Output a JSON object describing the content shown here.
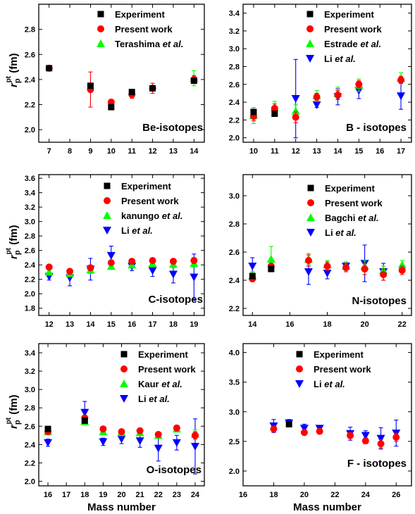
{
  "colors": {
    "experiment": "#000000",
    "present": "#ff0000",
    "ref": "#00ff00",
    "li": "#0000ff"
  },
  "chart_data": [
    {
      "type": "scatter",
      "panel": "Be",
      "label": "Be-isotopes",
      "xlim": [
        6.5,
        14.5
      ],
      "ylim": [
        1.9,
        3.0
      ],
      "xticks": [
        7,
        8,
        9,
        10,
        11,
        12,
        13,
        14
      ],
      "yticks": [
        2.0,
        2.2,
        2.4,
        2.6,
        2.8
      ],
      "ylabel_main": "r",
      "ylabel_sub": "p",
      "ylabel_sup": "pt",
      "ylabel_unit": " (fm)",
      "xlabel": "",
      "series": [
        {
          "name": "Experiment",
          "marker": "square",
          "color": "#000000",
          "points": [
            {
              "x": 7,
              "y": 2.49,
              "e": 0.01
            },
            {
              "x": 9,
              "y": 2.35,
              "e": 0.02
            },
            {
              "x": 10,
              "y": 2.18,
              "e": 0.01
            },
            {
              "x": 11,
              "y": 2.3,
              "e": 0.02
            },
            {
              "x": 12,
              "y": 2.33,
              "e": 0.02
            },
            {
              "x": 14,
              "y": 2.39,
              "e": 0.02
            }
          ]
        },
        {
          "name": "Present work",
          "marker": "circle",
          "color": "#ff0000",
          "points": [
            {
              "x": 7,
              "y": 2.49,
              "e": 0.01
            },
            {
              "x": 9,
              "y": 2.32,
              "e": 0.14
            },
            {
              "x": 10,
              "y": 2.22,
              "e": 0.02
            },
            {
              "x": 11,
              "y": 2.28,
              "e": 0.03
            },
            {
              "x": 12,
              "y": 2.33,
              "e": 0.04
            },
            {
              "x": 14,
              "y": 2.4,
              "e": 0.03
            }
          ]
        },
        {
          "name_main": "Terashima ",
          "name_em": "et al.",
          "marker": "triangle-up",
          "color": "#00ff00",
          "points": [
            {
              "x": 14,
              "y": 2.41,
              "e": 0.06
            }
          ]
        }
      ]
    },
    {
      "type": "scatter",
      "panel": "B",
      "label": "B - isotopes",
      "xlim": [
        9.5,
        17.5
      ],
      "ylim": [
        1.95,
        3.5
      ],
      "xticks": [
        10,
        11,
        12,
        13,
        14,
        15,
        16,
        17
      ],
      "yticks": [
        2.0,
        2.2,
        2.4,
        2.6,
        2.8,
        3.0,
        3.2,
        3.4
      ],
      "xlabel": "",
      "series": [
        {
          "name": "Experiment",
          "marker": "square",
          "color": "#000000",
          "points": [
            {
              "x": 10,
              "y": 2.29,
              "e": 0.02
            },
            {
              "x": 11,
              "y": 2.27,
              "e": 0.02
            }
          ]
        },
        {
          "name": "Present work",
          "marker": "circle",
          "color": "#ff0000",
          "points": [
            {
              "x": 10,
              "y": 2.24,
              "e": 0.05
            },
            {
              "x": 11,
              "y": 2.33,
              "e": 0.05
            },
            {
              "x": 12,
              "y": 2.23,
              "e": 0.06
            },
            {
              "x": 13,
              "y": 2.46,
              "e": 0.04
            },
            {
              "x": 14,
              "y": 2.48,
              "e": 0.05
            },
            {
              "x": 15,
              "y": 2.6,
              "e": 0.04
            },
            {
              "x": 17,
              "y": 2.65,
              "e": 0.04
            }
          ]
        },
        {
          "name_main": "Estrade ",
          "name_em": "et al.",
          "marker": "triangle-up",
          "color": "#00ff00",
          "points": [
            {
              "x": 10,
              "y": 2.25,
              "e": 0.09
            },
            {
              "x": 11,
              "y": 2.34,
              "e": 0.07
            },
            {
              "x": 12,
              "y": 2.3,
              "e": 0.07
            },
            {
              "x": 13,
              "y": 2.47,
              "e": 0.06
            },
            {
              "x": 14,
              "y": 2.5,
              "e": 0.07
            },
            {
              "x": 15,
              "y": 2.59,
              "e": 0.07
            },
            {
              "x": 17,
              "y": 2.67,
              "e": 0.06
            }
          ]
        },
        {
          "name_main": "Li ",
          "name_em": "et al.",
          "marker": "triangle-down",
          "color": "#0000ff",
          "points": [
            {
              "x": 12,
              "y": 2.44,
              "e": 0.44
            },
            {
              "x": 13,
              "y": 2.37,
              "e": 0.03
            },
            {
              "x": 14,
              "y": 2.46,
              "e": 0.09
            },
            {
              "x": 15,
              "y": 2.53,
              "e": 0.09
            },
            {
              "x": 17,
              "y": 2.47,
              "e": 0.15
            }
          ]
        }
      ]
    },
    {
      "type": "scatter",
      "panel": "C",
      "label": "C-isotopes",
      "xlim": [
        11.5,
        19.5
      ],
      "ylim": [
        1.7,
        3.65
      ],
      "xticks": [
        12,
        13,
        14,
        15,
        16,
        17,
        18,
        19
      ],
      "yticks": [
        1.8,
        2.0,
        2.2,
        2.4,
        2.6,
        2.8,
        3.0,
        3.2,
        3.4,
        3.6
      ],
      "ylabel_main": "r",
      "ylabel_sub": "p",
      "ylabel_sup": "pt",
      "ylabel_unit": " (fm)",
      "xlabel": "",
      "series": [
        {
          "name": "Experiment",
          "marker": "square",
          "color": "#000000",
          "points": []
        },
        {
          "name": "Present work",
          "marker": "circle",
          "color": "#ff0000",
          "points": [
            {
              "x": 12,
              "y": 2.37,
              "e": 0.02
            },
            {
              "x": 13,
              "y": 2.31,
              "e": 0.02
            },
            {
              "x": 14,
              "y": 2.36,
              "e": 0.02
            },
            {
              "x": 15,
              "y": 2.43,
              "e": 0.03
            },
            {
              "x": 16,
              "y": 2.45,
              "e": 0.03
            },
            {
              "x": 17,
              "y": 2.46,
              "e": 0.03
            },
            {
              "x": 18,
              "y": 2.45,
              "e": 0.03
            },
            {
              "x": 19,
              "y": 2.46,
              "e": 0.04
            }
          ]
        },
        {
          "name_main": "kanungo ",
          "name_em": "et al.",
          "marker": "triangle-up",
          "color": "#00ff00",
          "points": [
            {
              "x": 12,
              "y": 2.3,
              "e": 0.03
            },
            {
              "x": 13,
              "y": 2.28,
              "e": 0.04
            },
            {
              "x": 14,
              "y": 2.33,
              "e": 0.05
            },
            {
              "x": 15,
              "y": 2.38,
              "e": 0.04
            },
            {
              "x": 16,
              "y": 2.4,
              "e": 0.04
            },
            {
              "x": 17,
              "y": 2.42,
              "e": 0.05
            },
            {
              "x": 18,
              "y": 2.41,
              "e": 0.05
            },
            {
              "x": 19,
              "y": 2.42,
              "e": 0.05
            }
          ]
        },
        {
          "name_main": "Li ",
          "name_em": "et al.",
          "marker": "triangle-down",
          "color": "#0000ff",
          "points": [
            {
              "x": 12,
              "y": 2.24,
              "e": 0.05
            },
            {
              "x": 13,
              "y": 2.22,
              "e": 0.11
            },
            {
              "x": 14,
              "y": 2.34,
              "e": 0.15
            },
            {
              "x": 15,
              "y": 2.53,
              "e": 0.13
            },
            {
              "x": 16,
              "y": 2.38,
              "e": 0.06
            },
            {
              "x": 17,
              "y": 2.32,
              "e": 0.08
            },
            {
              "x": 18,
              "y": 2.27,
              "e": 0.12
            },
            {
              "x": 19,
              "y": 2.23,
              "e": 0.32
            }
          ]
        }
      ]
    },
    {
      "type": "scatter",
      "panel": "N",
      "label": "N-isotopes",
      "xlim": [
        13.5,
        22.5
      ],
      "ylim": [
        2.15,
        3.15
      ],
      "xticks": [
        14,
        16,
        18,
        20,
        22
      ],
      "yticks": [
        2.2,
        2.4,
        2.6,
        2.8,
        3.0
      ],
      "xlabel": "",
      "series": [
        {
          "name": "Experiment",
          "marker": "square",
          "color": "#000000",
          "points": [
            {
              "x": 14,
              "y": 2.43,
              "e": 0.02
            },
            {
              "x": 15,
              "y": 2.48,
              "e": 0.02
            }
          ]
        },
        {
          "name": "Present work",
          "marker": "circle",
          "color": "#ff0000",
          "points": [
            {
              "x": 14,
              "y": 2.41,
              "e": 0.02
            },
            {
              "x": 15,
              "y": 2.5,
              "e": 0.02
            },
            {
              "x": 17,
              "y": 2.54,
              "e": 0.04
            },
            {
              "x": 18,
              "y": 2.5,
              "e": 0.03
            },
            {
              "x": 19,
              "y": 2.49,
              "e": 0.03
            },
            {
              "x": 20,
              "y": 2.48,
              "e": 0.04
            },
            {
              "x": 21,
              "y": 2.44,
              "e": 0.04
            },
            {
              "x": 22,
              "y": 2.47,
              "e": 0.03
            }
          ]
        },
        {
          "name_main": "Bagchi ",
          "name_em": "et al.",
          "marker": "triangle-up",
          "color": "#00ff00",
          "points": [
            {
              "x": 14,
              "y": 2.43,
              "e": 0.03
            },
            {
              "x": 15,
              "y": 2.55,
              "e": 0.09
            },
            {
              "x": 17,
              "y": 2.55,
              "e": 0.04
            },
            {
              "x": 18,
              "y": 2.51,
              "e": 0.03
            },
            {
              "x": 19,
              "y": 2.5,
              "e": 0.03
            },
            {
              "x": 20,
              "y": 2.5,
              "e": 0.04
            },
            {
              "x": 21,
              "y": 2.47,
              "e": 0.03
            },
            {
              "x": 22,
              "y": 2.51,
              "e": 0.03
            }
          ]
        },
        {
          "name_main": "Li ",
          "name_em": "et al.",
          "marker": "triangle-down",
          "color": "#0000ff",
          "points": [
            {
              "x": 14,
              "y": 2.5,
              "e": 0.06
            },
            {
              "x": 17,
              "y": 2.46,
              "e": 0.09
            },
            {
              "x": 18,
              "y": 2.45,
              "e": 0.04
            },
            {
              "x": 19,
              "y": 2.5,
              "e": 0.03
            },
            {
              "x": 20,
              "y": 2.52,
              "e": 0.13
            },
            {
              "x": 21,
              "y": 2.46,
              "e": 0.06
            }
          ]
        }
      ]
    },
    {
      "type": "scatter",
      "panel": "O",
      "label": "O-isotopes",
      "xlim": [
        15.5,
        24.5
      ],
      "ylim": [
        1.95,
        3.5
      ],
      "xticks": [
        16,
        17,
        18,
        19,
        20,
        21,
        22,
        23,
        24
      ],
      "yticks": [
        2.0,
        2.2,
        2.4,
        2.6,
        2.8,
        3.0,
        3.2,
        3.4
      ],
      "ylabel_main": "r",
      "ylabel_sub": "p",
      "ylabel_sup": "pt",
      "ylabel_unit": " (fm)",
      "xlabel": "Mass number",
      "series": [
        {
          "name": "Experiment",
          "marker": "square",
          "color": "#000000",
          "points": [
            {
              "x": 16,
              "y": 2.57,
              "e": 0.01
            },
            {
              "x": 18,
              "y": 2.66,
              "e": 0.02
            }
          ]
        },
        {
          "name": "Present work",
          "marker": "circle",
          "color": "#ff0000",
          "points": [
            {
              "x": 16,
              "y": 2.54,
              "e": 0.02
            },
            {
              "x": 18,
              "y": 2.69,
              "e": 0.02
            },
            {
              "x": 19,
              "y": 2.57,
              "e": 0.02
            },
            {
              "x": 20,
              "y": 2.54,
              "e": 0.02
            },
            {
              "x": 21,
              "y": 2.55,
              "e": 0.02
            },
            {
              "x": 22,
              "y": 2.51,
              "e": 0.02
            },
            {
              "x": 23,
              "y": 2.58,
              "e": 0.03
            },
            {
              "x": 24,
              "y": 2.5,
              "e": 0.04
            }
          ]
        },
        {
          "name_main": "Kaur ",
          "name_em": "et al.",
          "marker": "triangle-up",
          "color": "#00ff00",
          "points": [
            {
              "x": 16,
              "y": 2.54,
              "e": 0.02
            },
            {
              "x": 18,
              "y": 2.65,
              "e": 0.03
            },
            {
              "x": 19,
              "y": 2.54,
              "e": 0.03
            },
            {
              "x": 20,
              "y": 2.53,
              "e": 0.03
            },
            {
              "x": 21,
              "y": 2.53,
              "e": 0.03
            },
            {
              "x": 22,
              "y": 2.5,
              "e": 0.03
            },
            {
              "x": 23,
              "y": 2.57,
              "e": 0.03
            },
            {
              "x": 24,
              "y": 2.51,
              "e": 0.05
            }
          ]
        },
        {
          "name_main": "Li ",
          "name_em": "et al.",
          "marker": "triangle-down",
          "color": "#0000ff",
          "points": [
            {
              "x": 16,
              "y": 2.42,
              "e": 0.04
            },
            {
              "x": 18,
              "y": 2.75,
              "e": 0.12
            },
            {
              "x": 19,
              "y": 2.43,
              "e": 0.04
            },
            {
              "x": 20,
              "y": 2.46,
              "e": 0.05
            },
            {
              "x": 21,
              "y": 2.44,
              "e": 0.07
            },
            {
              "x": 22,
              "y": 2.36,
              "e": 0.14
            },
            {
              "x": 23,
              "y": 2.42,
              "e": 0.08
            },
            {
              "x": 24,
              "y": 2.38,
              "e": 0.3
            }
          ]
        }
      ]
    },
    {
      "type": "scatter",
      "panel": "F",
      "label": "F - isotopes",
      "xlim": [
        16,
        27
      ],
      "ylim": [
        1.75,
        4.15
      ],
      "xticks": [
        16,
        18,
        20,
        22,
        24,
        26
      ],
      "yticks": [
        2.0,
        2.5,
        3.0,
        3.5,
        4.0
      ],
      "xlabel": "Mass number",
      "series": [
        {
          "name": "Experiment",
          "marker": "square",
          "color": "#000000",
          "points": [
            {
              "x": 19,
              "y": 2.79,
              "e": 0.02
            }
          ]
        },
        {
          "name": "Present work",
          "marker": "circle",
          "color": "#ff0000",
          "points": [
            {
              "x": 18,
              "y": 2.71,
              "e": 0.04
            },
            {
              "x": 20,
              "y": 2.65,
              "e": 0.04
            },
            {
              "x": 21,
              "y": 2.67,
              "e": 0.04
            },
            {
              "x": 23,
              "y": 2.6,
              "e": 0.05
            },
            {
              "x": 24,
              "y": 2.51,
              "e": 0.05
            },
            {
              "x": 25,
              "y": 2.46,
              "e": 0.07
            },
            {
              "x": 26,
              "y": 2.57,
              "e": 0.07
            }
          ]
        },
        {
          "name_main": "Li ",
          "name_em": "et al.",
          "marker": "triangle-down",
          "color": "#0000ff",
          "points": [
            {
              "x": 18,
              "y": 2.76,
              "e": 0.11
            },
            {
              "x": 19,
              "y": 2.81,
              "e": 0.06
            },
            {
              "x": 20,
              "y": 2.72,
              "e": 0.07
            },
            {
              "x": 21,
              "y": 2.72,
              "e": 0.05
            },
            {
              "x": 23,
              "y": 2.63,
              "e": 0.11
            },
            {
              "x": 24,
              "y": 2.6,
              "e": 0.08
            },
            {
              "x": 25,
              "y": 2.55,
              "e": 0.18
            },
            {
              "x": 26,
              "y": 2.64,
              "e": 0.22
            }
          ]
        }
      ]
    }
  ]
}
